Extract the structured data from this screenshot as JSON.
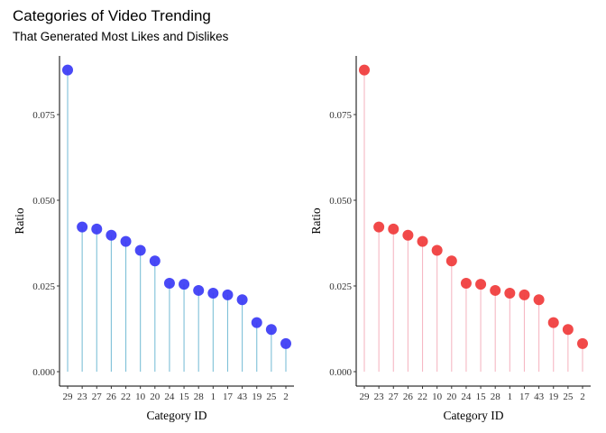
{
  "title": "Categories of Video Trending",
  "subtitle": "That Generated Most Likes and Dislikes",
  "chart_data": [
    {
      "type": "lollipop",
      "xlabel": "Category ID",
      "ylabel": "Ratio",
      "ylim": [
        0,
        0.09
      ],
      "yticks": [
        "0.000",
        "0.025",
        "0.050",
        "0.075"
      ],
      "grid": false,
      "categories": [
        "29",
        "23",
        "27",
        "26",
        "22",
        "10",
        "20",
        "24",
        "15",
        "28",
        "1",
        "17",
        "43",
        "19",
        "25",
        "2"
      ],
      "values": [
        0.088,
        0.0422,
        0.0416,
        0.0398,
        0.038,
        0.0354,
        0.0323,
        0.0258,
        0.0255,
        0.0237,
        0.0229,
        0.0224,
        0.021,
        0.0143,
        0.0123,
        0.0082
      ],
      "point_color": "#3a3af5",
      "stem_color": "#7ec0d8"
    },
    {
      "type": "lollipop",
      "xlabel": "Category ID",
      "ylabel": "Ratio",
      "ylim": [
        0,
        0.09
      ],
      "yticks": [
        "0.000",
        "0.025",
        "0.050",
        "0.075"
      ],
      "grid": false,
      "categories": [
        "29",
        "23",
        "27",
        "26",
        "22",
        "10",
        "20",
        "24",
        "15",
        "28",
        "1",
        "17",
        "43",
        "19",
        "25",
        "2"
      ],
      "values": [
        0.088,
        0.0422,
        0.0416,
        0.0398,
        0.038,
        0.0354,
        0.0323,
        0.0258,
        0.0255,
        0.0237,
        0.0229,
        0.0224,
        0.021,
        0.0143,
        0.0123,
        0.0082
      ],
      "point_color": "#f03a3a",
      "stem_color": "#f6b8c4"
    }
  ]
}
